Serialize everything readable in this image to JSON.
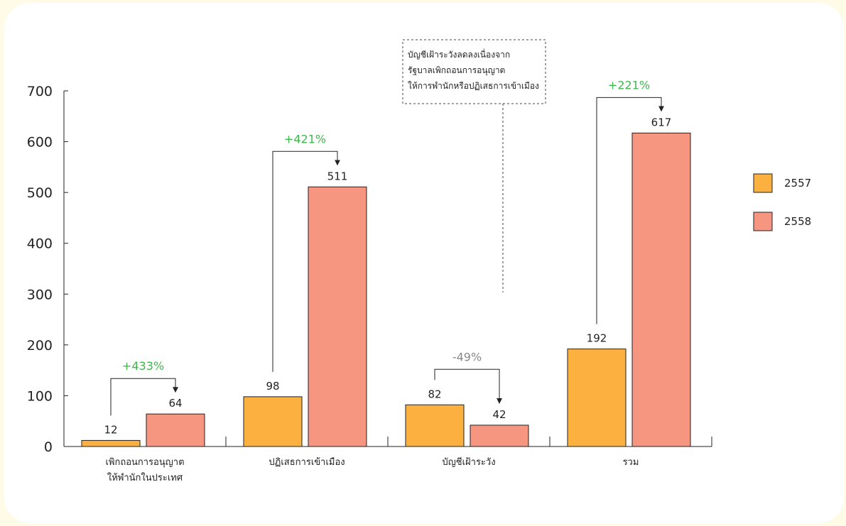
{
  "chart_data": {
    "type": "bar",
    "categories": [
      [
        "เพิกถอนการอนุญาต",
        "ให้พำนักในประเทศ"
      ],
      [
        "ปฏิเสธการเข้าเมือง"
      ],
      [
        "บัญชีเฝ้าระวัง"
      ],
      [
        "รวม"
      ]
    ],
    "series": [
      {
        "name": "2557",
        "values": [
          12,
          98,
          82,
          192
        ],
        "color": "#fbb040"
      },
      {
        "name": "2558",
        "values": [
          64,
          511,
          42,
          617
        ],
        "color": "#f69681"
      }
    ],
    "ylim": [
      0,
      700
    ],
    "yticks": [
      0,
      100,
      200,
      300,
      400,
      500,
      600,
      700
    ],
    "changes": [
      {
        "text": "+433%",
        "color": "#3cb94a"
      },
      {
        "text": "+421%",
        "color": "#3cb94a"
      },
      {
        "text": "-49%",
        "color": "#888888"
      },
      {
        "text": "+221%",
        "color": "#3cb94a"
      }
    ],
    "annotation": [
      "บัญชีเฝ้าระวังลดลงเนื่องจาก",
      "รัฐบาลเพิกถอนการอนุญาต",
      "ให้การพำนักหรือปฏิเสธการเข้าเมือง"
    ],
    "legend_position": "right",
    "grid": false
  }
}
